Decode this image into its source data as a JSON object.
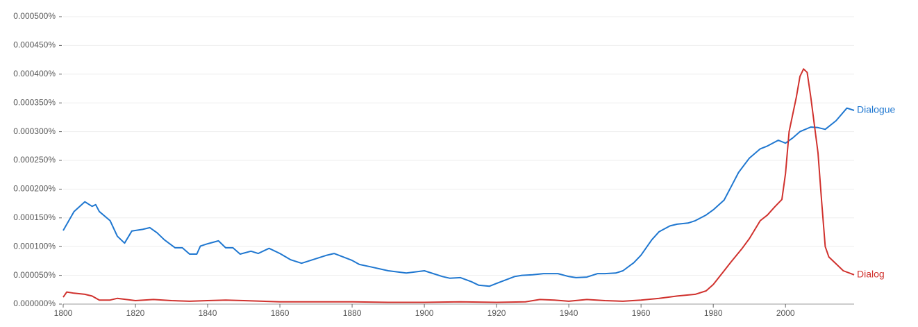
{
  "chart_data": {
    "type": "line",
    "xlim": [
      1800,
      2019
    ],
    "xticks": [
      1800,
      1820,
      1840,
      1860,
      1880,
      1900,
      1920,
      1940,
      1960,
      1980,
      2000
    ],
    "ylim": [
      0,
      0.0005
    ],
    "yticks": [
      {
        "value": 0,
        "label": "0.000000%"
      },
      {
        "value": 5e-05,
        "label": "0.000050%"
      },
      {
        "value": 0.0001,
        "label": "0.000100%"
      },
      {
        "value": 0.00015,
        "label": "0.000150%"
      },
      {
        "value": 0.0002,
        "label": "0.000200%"
      },
      {
        "value": 0.00025,
        "label": "0.000250%"
      },
      {
        "value": 0.0003,
        "label": "0.000300%"
      },
      {
        "value": 0.00035,
        "label": "0.000350%"
      },
      {
        "value": 0.0004,
        "label": "0.000400%"
      },
      {
        "value": 0.00045,
        "label": "0.000450%"
      },
      {
        "value": 0.0005,
        "label": "0.000500%"
      }
    ],
    "grid": true,
    "series": [
      {
        "name": "Dialogue",
        "color": "#1f77d0",
        "x": [
          1800,
          1803,
          1806,
          1808,
          1809,
          1810,
          1813,
          1815,
          1817,
          1819,
          1822,
          1824,
          1826,
          1828,
          1831,
          1833,
          1835,
          1837,
          1838,
          1840,
          1843,
          1845,
          1847,
          1849,
          1852,
          1854,
          1857,
          1860,
          1863,
          1866,
          1870,
          1873,
          1875,
          1880,
          1882,
          1885,
          1890,
          1895,
          1900,
          1905,
          1907,
          1910,
          1913,
          1915,
          1918,
          1920,
          1925,
          1927,
          1930,
          1933,
          1937,
          1940,
          1942,
          1945,
          1948,
          1950,
          1953,
          1955,
          1958,
          1960,
          1963,
          1965,
          1968,
          1970,
          1973,
          1975,
          1978,
          1980,
          1983,
          1985,
          1987,
          1990,
          1993,
          1995,
          1998,
          2000,
          2002,
          2004,
          2007,
          2009,
          2011,
          2014,
          2017,
          2019
        ],
        "values": [
          0.000128,
          0.000161,
          0.000178,
          0.00017,
          0.000173,
          0.000161,
          0.000145,
          0.000118,
          0.000106,
          0.000127,
          0.00013,
          0.000133,
          0.000124,
          0.000112,
          9.8e-05,
          9.8e-05,
          8.7e-05,
          8.7e-05,
          0.000101,
          0.000105,
          0.00011,
          9.8e-05,
          9.8e-05,
          8.7e-05,
          9.2e-05,
          8.8e-05,
          9.7e-05,
          8.8e-05,
          7.7e-05,
          7.1e-05,
          7.9e-05,
          8.5e-05,
          8.8e-05,
          7.6e-05,
          6.9e-05,
          6.5e-05,
          5.8e-05,
          5.4e-05,
          5.8e-05,
          4.8e-05,
          4.5e-05,
          4.6e-05,
          3.9e-05,
          3.3e-05,
          3.1e-05,
          3.6e-05,
          4.8e-05,
          5e-05,
          5.1e-05,
          5.3e-05,
          5.3e-05,
          4.8e-05,
          4.6e-05,
          4.7e-05,
          5.3e-05,
          5.3e-05,
          5.4e-05,
          5.8e-05,
          7.2e-05,
          8.5e-05,
          0.000112,
          0.000126,
          0.000136,
          0.000139,
          0.000141,
          0.000145,
          0.000155,
          0.000164,
          0.000181,
          0.000205,
          0.000229,
          0.000254,
          0.00027,
          0.000275,
          0.000285,
          0.00028,
          0.000289,
          0.0003,
          0.000308,
          0.000307,
          0.000304,
          0.000319,
          0.000341,
          0.000337
        ]
      },
      {
        "name": "Dialog",
        "color": "#d0312d",
        "x": [
          1800,
          1801,
          1803,
          1806,
          1808,
          1810,
          1813,
          1815,
          1820,
          1825,
          1830,
          1835,
          1840,
          1845,
          1850,
          1860,
          1870,
          1880,
          1890,
          1900,
          1910,
          1920,
          1928,
          1932,
          1936,
          1940,
          1945,
          1950,
          1955,
          1960,
          1965,
          1970,
          1975,
          1978,
          1980,
          1983,
          1985,
          1988,
          1990,
          1993,
          1995,
          1997,
          1999,
          2000,
          2001,
          2003,
          2004,
          2005,
          2006,
          2007,
          2009,
          2010,
          2011,
          2012,
          2014,
          2016,
          2019
        ],
        "values": [
          1.2e-05,
          2.1e-05,
          1.9e-05,
          1.7e-05,
          1.4e-05,
          7e-06,
          7e-06,
          1e-05,
          6e-06,
          8e-06,
          6e-06,
          5e-06,
          6e-06,
          7e-06,
          6e-06,
          4e-06,
          4e-06,
          4e-06,
          3e-06,
          3e-06,
          4e-06,
          3e-06,
          4e-06,
          8e-06,
          7e-06,
          5e-06,
          8e-06,
          6e-06,
          5e-06,
          7e-06,
          1e-05,
          1.4e-05,
          1.7e-05,
          2.3e-05,
          3.4e-05,
          5.8e-05,
          7.4e-05,
          9.7e-05,
          0.000114,
          0.000145,
          0.000155,
          0.000169,
          0.000182,
          0.000227,
          0.0003,
          0.00036,
          0.000396,
          0.000409,
          0.000403,
          0.00036,
          0.000263,
          0.000179,
          0.0001,
          8.2e-05,
          7e-05,
          5.8e-05,
          5.1e-05
        ]
      }
    ]
  }
}
